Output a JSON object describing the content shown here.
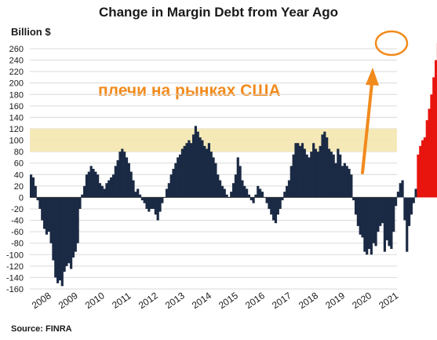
{
  "chart_data": {
    "type": "bar",
    "title": "Change in Margin Debt from Year Ago",
    "ylabel": "Billion $",
    "source": "Source: FINRA",
    "annotation": "плечи на рынках США",
    "ylim": [
      -160,
      270
    ],
    "yticks": [
      260,
      240,
      220,
      200,
      180,
      160,
      140,
      120,
      100,
      80,
      60,
      40,
      20,
      0,
      -20,
      -40,
      -60,
      -80,
      -100,
      -120,
      -140,
      -160
    ],
    "x_tick_labels": [
      "2008",
      "2009",
      "2010",
      "2011",
      "2012",
      "2013",
      "2014",
      "2015",
      "2016",
      "2017",
      "2018",
      "2019",
      "2020",
      "2021"
    ],
    "grid": true,
    "highlight_band": {
      "from": 80,
      "to": 120,
      "color": "#f5e7b0"
    },
    "colors": {
      "bar": "#1b2a44",
      "highlight_bar": "#e8150f",
      "accent": "#f28a1c"
    },
    "x_start": 2008.0,
    "x_step": 0.0833,
    "values": [
      40,
      35,
      20,
      -5,
      -20,
      -40,
      -55,
      -65,
      -60,
      -80,
      -110,
      -140,
      -150,
      -145,
      -155,
      -130,
      -120,
      -115,
      -125,
      -105,
      -95,
      -80,
      -20,
      5,
      20,
      40,
      45,
      55,
      50,
      45,
      40,
      25,
      20,
      15,
      25,
      30,
      35,
      40,
      55,
      65,
      80,
      85,
      80,
      70,
      60,
      45,
      30,
      10,
      15,
      5,
      -5,
      -10,
      -20,
      -25,
      -20,
      -20,
      -30,
      -40,
      -25,
      -10,
      0,
      15,
      25,
      40,
      50,
      60,
      70,
      75,
      85,
      90,
      95,
      100,
      95,
      110,
      125,
      115,
      105,
      100,
      90,
      85,
      95,
      80,
      70,
      60,
      40,
      30,
      20,
      15,
      5,
      0,
      10,
      25,
      40,
      70,
      55,
      30,
      20,
      15,
      5,
      -5,
      -10,
      5,
      20,
      15,
      10,
      0,
      -10,
      -20,
      -30,
      -40,
      -45,
      -30,
      -20,
      -5,
      10,
      20,
      30,
      55,
      75,
      95,
      95,
      90,
      95,
      85,
      75,
      70,
      80,
      95,
      85,
      80,
      90,
      110,
      115,
      105,
      85,
      80,
      75,
      60,
      85,
      75,
      55,
      60,
      55,
      50,
      40,
      -5,
      -30,
      -50,
      -65,
      -70,
      -95,
      -100,
      -90,
      -100,
      -80,
      -85,
      -60,
      -50,
      -45,
      -95,
      -75,
      -85,
      -90,
      -60,
      -15,
      10,
      25,
      30,
      -40,
      -95,
      -50,
      -30,
      -10,
      15,
      75,
      90,
      100,
      105,
      135,
      155,
      180,
      210,
      240,
      270
    ],
    "highlight_from_index": 174
  }
}
